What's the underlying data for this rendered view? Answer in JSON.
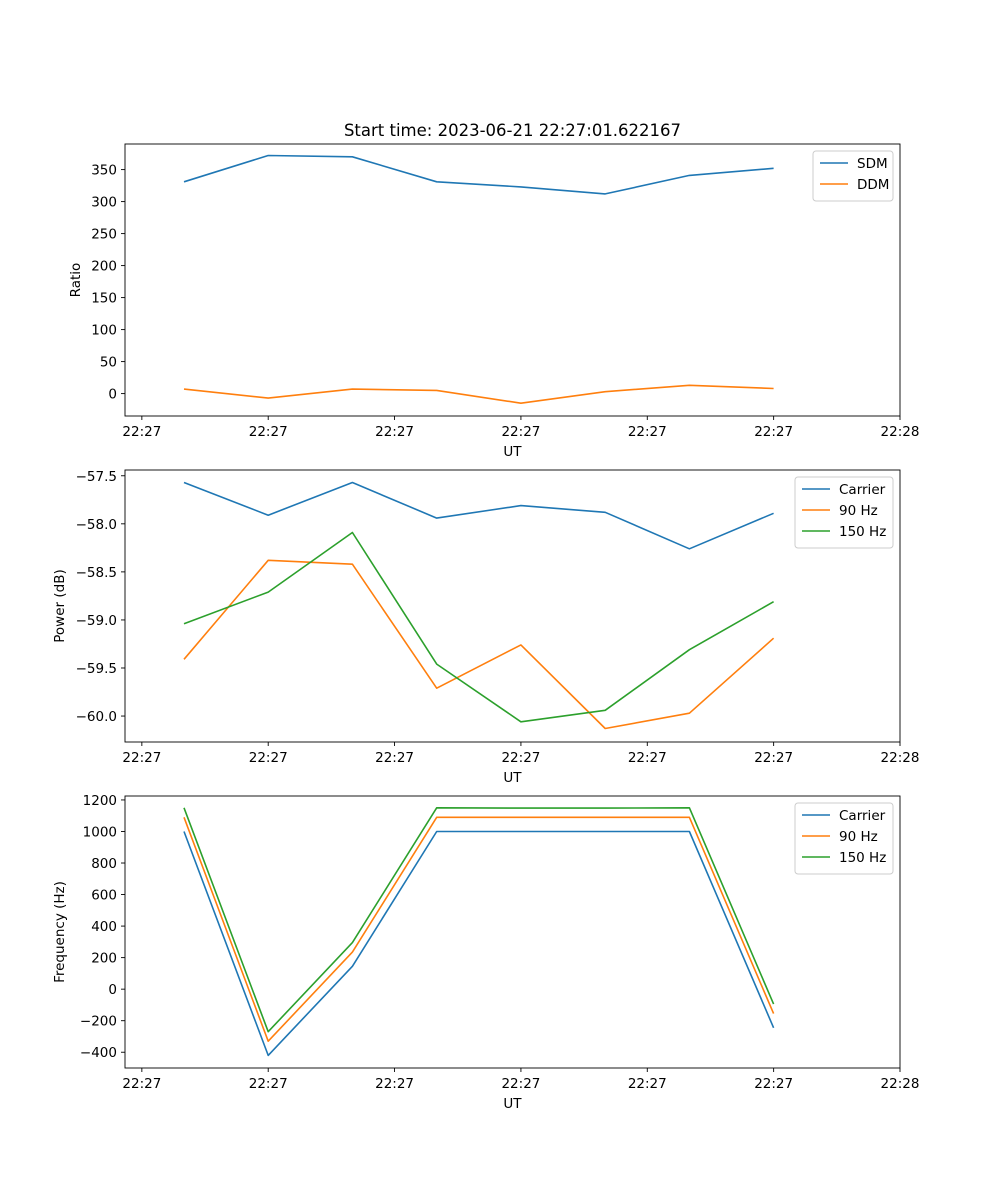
{
  "figure": {
    "title": "Start time: 2023-06-21 22:27:01.622167"
  },
  "chart_data": [
    {
      "type": "line",
      "title": "Start time: 2023-06-21 22:27:01.622167",
      "xlabel": "UT",
      "ylabel": "Ratio",
      "x": [
        1,
        2,
        3,
        4,
        5,
        6,
        7,
        8
      ],
      "xlim": [
        0.3,
        9.5
      ],
      "x_ticks": [
        {
          "value": 0.5,
          "label": "22:27"
        },
        {
          "value": 2,
          "label": "22:27"
        },
        {
          "value": 3.5,
          "label": "22:27"
        },
        {
          "value": 5,
          "label": "22:27"
        },
        {
          "value": 6.5,
          "label": "22:27"
        },
        {
          "value": 8,
          "label": "22:27"
        },
        {
          "value": 9.5,
          "label": "22:28"
        }
      ],
      "ylim": [
        -35,
        390
      ],
      "y_ticks": [
        0,
        50,
        100,
        150,
        200,
        250,
        300,
        350
      ],
      "y_tick_labels": [
        "0",
        "50",
        "100",
        "150",
        "200",
        "250",
        "300",
        "350"
      ],
      "legend_position": "top-right",
      "series": [
        {
          "name": "SDM",
          "color": "#1f77b4",
          "values": [
            331,
            372,
            370,
            331,
            323,
            312,
            341,
            352
          ]
        },
        {
          "name": "DDM",
          "color": "#ff7f0e",
          "values": [
            7,
            -7,
            7,
            5,
            -15,
            3,
            13,
            8
          ]
        }
      ]
    },
    {
      "type": "line",
      "xlabel": "UT",
      "ylabel": "Power (dB)",
      "x": [
        1,
        2,
        3,
        4,
        5,
        6,
        7,
        8
      ],
      "xlim": [
        0.3,
        9.5
      ],
      "x_ticks": [
        {
          "value": 0.5,
          "label": "22:27"
        },
        {
          "value": 2,
          "label": "22:27"
        },
        {
          "value": 3.5,
          "label": "22:27"
        },
        {
          "value": 5,
          "label": "22:27"
        },
        {
          "value": 6.5,
          "label": "22:27"
        },
        {
          "value": 8,
          "label": "22:27"
        },
        {
          "value": 9.5,
          "label": "22:28"
        }
      ],
      "ylim": [
        -60.27,
        -57.44
      ],
      "y_ticks": [
        -60.0,
        -59.5,
        -59.0,
        -58.5,
        -58.0,
        -57.5
      ],
      "y_tick_labels": [
        "−60.0",
        "−59.5",
        "−59.0",
        "−58.5",
        "−58.0",
        "−57.5"
      ],
      "legend_position": "top-right",
      "series": [
        {
          "name": "Carrier",
          "color": "#1f77b4",
          "values": [
            -57.57,
            -57.91,
            -57.57,
            -57.94,
            -57.81,
            -57.88,
            -58.26,
            -57.89
          ]
        },
        {
          "name": "90 Hz",
          "color": "#ff7f0e",
          "values": [
            -59.41,
            -58.38,
            -58.42,
            -59.71,
            -59.26,
            -60.13,
            -59.97,
            -59.19
          ]
        },
        {
          "name": "150 Hz",
          "color": "#2ca02c",
          "values": [
            -59.04,
            -58.71,
            -58.09,
            -59.46,
            -60.06,
            -59.94,
            -59.31,
            -58.81
          ]
        }
      ]
    },
    {
      "type": "line",
      "xlabel": "UT",
      "ylabel": "Frequency (Hz)",
      "x": [
        1,
        2,
        3,
        4,
        5,
        6,
        7,
        8
      ],
      "xlim": [
        0.3,
        9.5
      ],
      "x_ticks": [
        {
          "value": 0.5,
          "label": "22:27"
        },
        {
          "value": 2,
          "label": "22:27"
        },
        {
          "value": 3.5,
          "label": "22:27"
        },
        {
          "value": 5,
          "label": "22:27"
        },
        {
          "value": 6.5,
          "label": "22:27"
        },
        {
          "value": 8,
          "label": "22:27"
        },
        {
          "value": 9.5,
          "label": "22:28"
        }
      ],
      "ylim": [
        -500,
        1225
      ],
      "y_ticks": [
        -400,
        -200,
        0,
        200,
        400,
        600,
        800,
        1000,
        1200
      ],
      "y_tick_labels": [
        "−400",
        "−200",
        "0",
        "200",
        "400",
        "600",
        "800",
        "1000",
        "1200"
      ],
      "legend_position": "top-right",
      "series": [
        {
          "name": "Carrier",
          "color": "#1f77b4",
          "values": [
            1000,
            -420,
            145,
            1000,
            1000,
            1000,
            1000,
            -245
          ]
        },
        {
          "name": "90 Hz",
          "color": "#ff7f0e",
          "values": [
            1090,
            -330,
            235,
            1090,
            1090,
            1090,
            1090,
            -155
          ]
        },
        {
          "name": "150 Hz",
          "color": "#2ca02c",
          "values": [
            1150,
            -270,
            295,
            1150,
            1148,
            1148,
            1150,
            -95
          ]
        }
      ]
    }
  ]
}
